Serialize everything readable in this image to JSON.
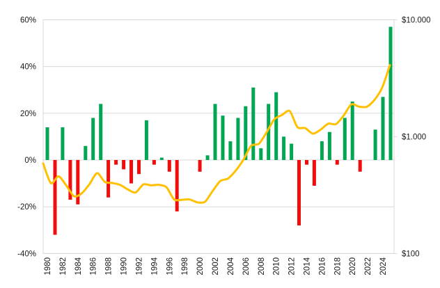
{
  "chart_data": {
    "type": "bar",
    "combo": "bar+line",
    "title": "",
    "categories": [
      1980,
      1981,
      1982,
      1983,
      1984,
      1985,
      1986,
      1987,
      1988,
      1989,
      1990,
      1991,
      1992,
      1993,
      1994,
      1995,
      1996,
      1997,
      1998,
      1999,
      2000,
      2001,
      2002,
      2003,
      2004,
      2005,
      2006,
      2007,
      2008,
      2009,
      2010,
      2011,
      2012,
      2013,
      2014,
      2015,
      2016,
      2017,
      2018,
      2019,
      2020,
      2021,
      2022,
      2023,
      2024,
      2025
    ],
    "series": [
      {
        "name": "yearly-change-bars",
        "type": "bar",
        "axis": "left",
        "unit": "%",
        "values": [
          14,
          -32,
          14,
          -17,
          -19,
          6,
          18,
          24,
          -16,
          -2,
          -4,
          -10,
          -6,
          17,
          -2,
          1,
          -5,
          -22,
          0,
          0,
          -5,
          2,
          24,
          19,
          8,
          18,
          23,
          31,
          5,
          24,
          29,
          10,
          7,
          -28,
          -2,
          -11,
          8,
          12,
          -2,
          18,
          25,
          -5,
          0,
          13,
          27,
          57
        ]
      },
      {
        "name": "price-line",
        "type": "line",
        "axis": "right",
        "unit": "$",
        "values": [
          590,
          400,
          457,
          382,
          309,
          327,
          391,
          487,
          410,
          401,
          386,
          353,
          333,
          390,
          383,
          387,
          369,
          290,
          288,
          290,
          274,
          277,
          343,
          417,
          438,
          513,
          636,
          834,
          870,
          1088,
          1405,
          1531,
          1657,
          1205,
          1184,
          1060,
          1146,
          1291,
          1279,
          1514,
          1888,
          1806,
          1800,
          2063,
          2625,
          4100
        ]
      }
    ],
    "left_axis": {
      "ticks": [
        "60%",
        "40%",
        "20%",
        "0%",
        "-20%",
        "-40%"
      ],
      "tick_values": [
        60,
        40,
        20,
        0,
        -20,
        -40
      ],
      "min": -40,
      "max": 60
    },
    "right_axis": {
      "scale": "log",
      "ticks": [
        "$10.000",
        "$1.000",
        "$100"
      ],
      "tick_values": [
        10000,
        1000,
        100
      ],
      "min": 100,
      "max": 10000
    },
    "x_axis": {
      "labels": [
        "1980",
        "1982",
        "1984",
        "1986",
        "1988",
        "1990",
        "1992",
        "1994",
        "1996",
        "1998",
        "2000",
        "2002",
        "2004",
        "2006",
        "2008",
        "2010",
        "2012",
        "2014",
        "2016",
        "2018",
        "2022",
        "2024"
      ],
      "label_every_years": 2,
      "label_rotation_deg": -90
    },
    "legend": null,
    "grid": true
  },
  "colors": {
    "bar_positive": "#00a651",
    "bar_negative": "#f20d0d",
    "line": "#ffc000",
    "gridline": "#d9d9d9",
    "axis_text": "#1a1a1a",
    "background": "#ffffff"
  }
}
